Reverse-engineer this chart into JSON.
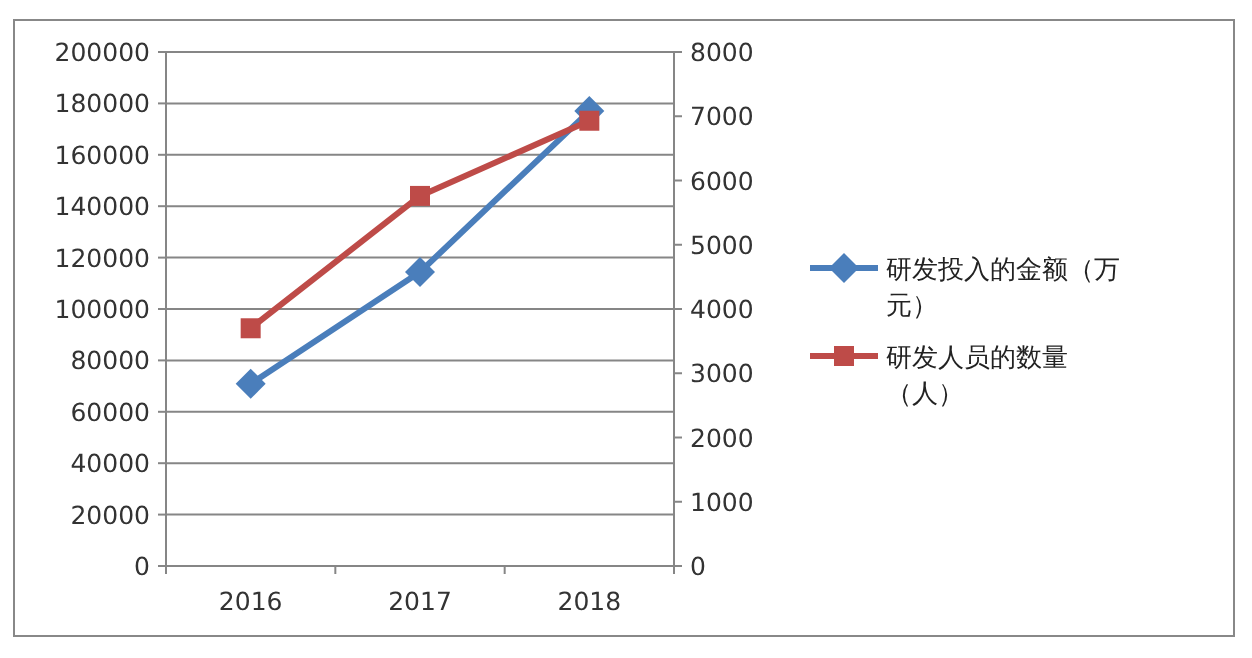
{
  "chart_data": {
    "type": "line",
    "categories": [
      "2016",
      "2017",
      "2018"
    ],
    "series": [
      {
        "name": "研发投入的金额（万元）",
        "color": "#4a7ebb",
        "marker": "diamond",
        "values": [
          70900,
          114400,
          177000
        ]
      },
      {
        "name": "研发人员的数量（人）",
        "color": "#be4b48",
        "marker": "square",
        "axis": "y2",
        "values": [
          3700,
          5760,
          6930
        ]
      }
    ],
    "ylim": [
      0,
      200000
    ],
    "yticks": [
      0,
      20000,
      40000,
      60000,
      80000,
      100000,
      120000,
      140000,
      160000,
      180000,
      200000
    ],
    "y2lim": [
      0,
      8000
    ],
    "y2ticks": [
      0,
      1000,
      2000,
      3000,
      4000,
      5000,
      6000,
      7000,
      8000
    ],
    "grid": "y",
    "legend": "right"
  }
}
